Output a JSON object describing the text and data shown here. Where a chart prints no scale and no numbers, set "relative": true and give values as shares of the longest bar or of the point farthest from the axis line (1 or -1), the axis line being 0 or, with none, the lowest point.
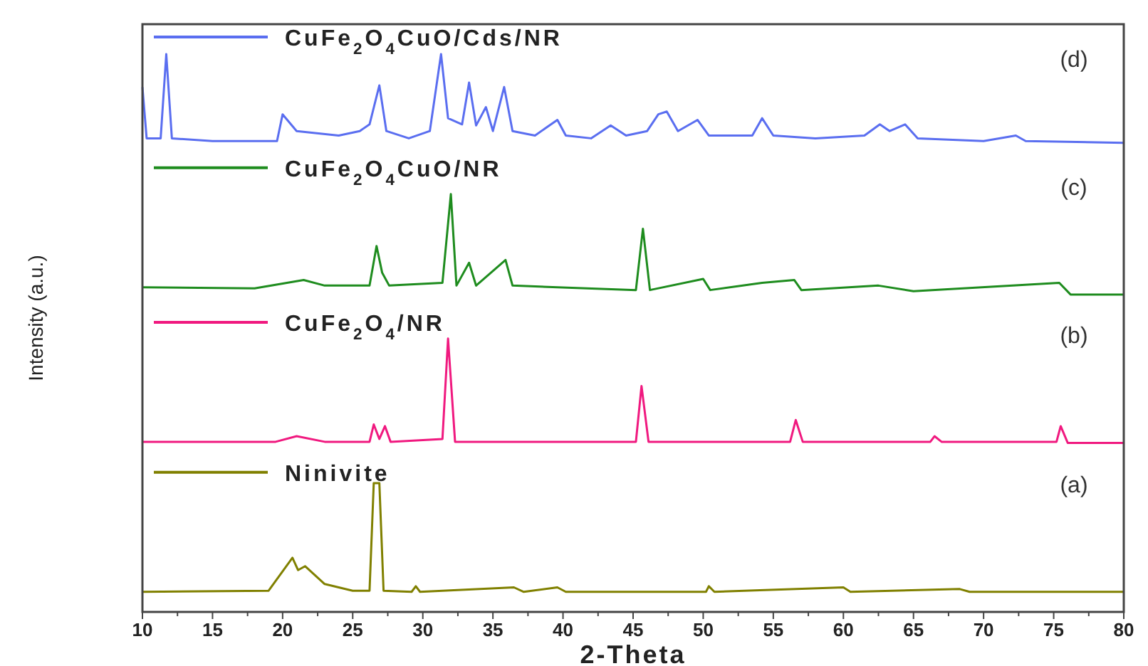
{
  "chart_data": {
    "type": "line",
    "relative": true,
    "xlabel": "2-Theta",
    "ylabel": "Intensity (a.u.)",
    "xlim": [
      10,
      80
    ],
    "xticks": [
      10,
      {
        "value": 12.5,
        "label": null
      },
      15,
      {
        "value": 17.5,
        "label": null
      },
      20,
      {
        "value": 22.5,
        "label": null
      },
      25,
      {
        "value": 27.5,
        "label": null
      },
      30,
      {
        "value": 32.5,
        "label": null
      },
      35,
      {
        "value": 37.5,
        "label": null
      },
      40,
      {
        "value": 42.5,
        "label": null
      },
      45,
      {
        "value": 47.5,
        "label": null
      },
      50,
      {
        "value": 52.5,
        "label": null
      },
      55,
      {
        "value": 57.5,
        "label": null
      },
      60,
      {
        "value": 62.5,
        "label": null
      },
      65,
      {
        "value": 67.5,
        "label": null
      },
      70,
      {
        "value": 72.5,
        "label": null
      },
      75,
      {
        "value": 77.5,
        "label": null
      },
      80
    ],
    "grid": false,
    "legend": "left",
    "marker": "none",
    "line_style": "solid",
    "annotations": [
      "(a)",
      "(b)",
      "(c)",
      "(d)"
    ],
    "series": [
      {
        "name": "Ninivite",
        "color": "#808000",
        "x": [
          10,
          19,
          20.7,
          21.1,
          21.6,
          23,
          25,
          26.2,
          26.5,
          26.9,
          27.2,
          29.2,
          29.5,
          29.8,
          36.5,
          37.2,
          39.6,
          40.2,
          50.2,
          50.4,
          50.8,
          60,
          60.5,
          68.3,
          69,
          80
        ],
        "values": [
          0.036,
          0.038,
          0.097,
          0.075,
          0.082,
          0.05,
          0.038,
          0.038,
          0.231,
          0.231,
          0.038,
          0.036,
          0.046,
          0.036,
          0.044,
          0.036,
          0.044,
          0.036,
          0.036,
          0.046,
          0.036,
          0.044,
          0.036,
          0.041,
          0.036,
          0.036
        ]
      },
      {
        "name": "CuFe$_{2}$O$_{4}$/NR",
        "color": "#f0197f",
        "x": [
          10,
          19.5,
          21,
          23,
          26.2,
          26.5,
          26.9,
          27.3,
          27.7,
          31.4,
          31.8,
          32.3,
          45.2,
          45.6,
          46.1,
          56.2,
          56.6,
          57.1,
          66.2,
          66.5,
          67,
          75.2,
          75.5,
          76,
          80
        ],
        "values": [
          0.305,
          0.305,
          0.315,
          0.305,
          0.305,
          0.336,
          0.31,
          0.333,
          0.305,
          0.31,
          0.49,
          0.305,
          0.305,
          0.405,
          0.305,
          0.305,
          0.344,
          0.305,
          0.305,
          0.315,
          0.305,
          0.305,
          0.333,
          0.303,
          0.303
        ]
      },
      {
        "name": "CuFe$_{2}$O$_{4}$CuO/NR",
        "color": "#1e8c1e",
        "x": [
          10,
          18,
          21.5,
          23,
          26.2,
          26.7,
          27.1,
          27.6,
          31.4,
          32,
          32.4,
          33.3,
          33.8,
          35.9,
          36.4,
          45.2,
          45.7,
          46.2,
          50,
          50.5,
          54.2,
          56.5,
          57,
          62.5,
          65,
          75.4,
          76.2,
          80
        ],
        "values": [
          0.582,
          0.58,
          0.595,
          0.585,
          0.585,
          0.656,
          0.608,
          0.585,
          0.59,
          0.749,
          0.585,
          0.626,
          0.585,
          0.631,
          0.585,
          0.577,
          0.687,
          0.577,
          0.597,
          0.577,
          0.59,
          0.595,
          0.577,
          0.585,
          0.575,
          0.59,
          0.569,
          0.569
        ]
      },
      {
        "name": "CuFe$_{2}$O$_{4}$CuO/Cds/NR",
        "color": "#5a6ef0",
        "x": [
          10,
          10.3,
          11.3,
          11.7,
          12.1,
          15,
          19.6,
          20,
          21,
          24,
          25.5,
          26.2,
          26.9,
          27.4,
          29,
          30.5,
          31.3,
          31.8,
          32.8,
          33.3,
          33.8,
          34.5,
          35,
          35.8,
          36.4,
          38,
          39.6,
          40.2,
          42,
          43.4,
          44.5,
          46,
          46.8,
          47.4,
          48.2,
          49.6,
          50.4,
          53.5,
          54.2,
          55,
          58,
          61.5,
          62.6,
          63.3,
          64.4,
          65.3,
          70,
          72.3,
          73,
          80
        ],
        "values": [
          0.941,
          0.849,
          0.849,
          1.0,
          0.849,
          0.844,
          0.844,
          0.892,
          0.862,
          0.854,
          0.862,
          0.874,
          0.944,
          0.862,
          0.849,
          0.862,
          1.0,
          0.885,
          0.874,
          0.949,
          0.872,
          0.905,
          0.862,
          0.941,
          0.862,
          0.854,
          0.882,
          0.854,
          0.849,
          0.872,
          0.854,
          0.862,
          0.892,
          0.897,
          0.862,
          0.882,
          0.854,
          0.854,
          0.885,
          0.854,
          0.849,
          0.854,
          0.874,
          0.862,
          0.874,
          0.849,
          0.844,
          0.854,
          0.844,
          0.841
        ]
      }
    ]
  }
}
